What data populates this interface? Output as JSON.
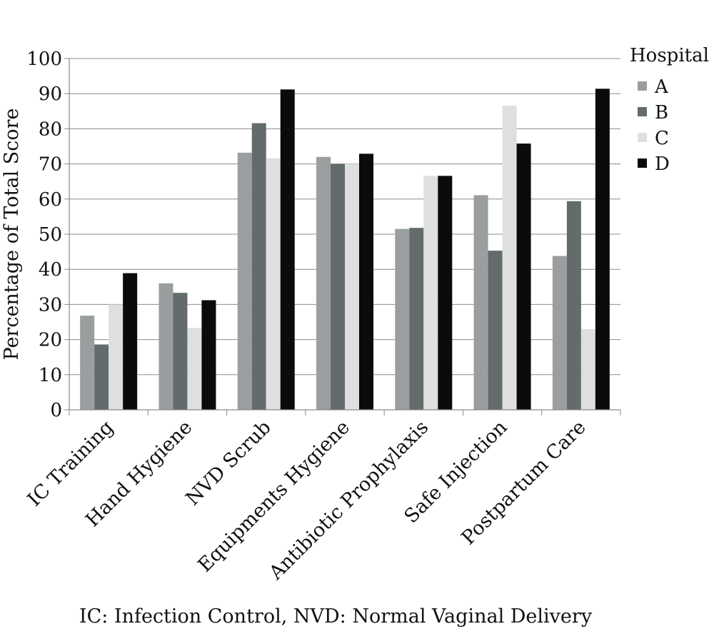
{
  "chart_data": {
    "type": "bar",
    "categories": [
      "IC Training",
      "Hand Hygiene",
      "NVD Scrub",
      "Equipments Hygiene",
      "Antibiotic Prophylaxis",
      "Safe Injection",
      "Postpartum Care"
    ],
    "series": [
      {
        "name": "A",
        "color": "#9a9e9e",
        "values": [
          26.8,
          36.0,
          73.2,
          72.0,
          51.5,
          61.1,
          43.8
        ]
      },
      {
        "name": "B",
        "color": "#646b6d",
        "values": [
          18.6,
          33.3,
          81.6,
          70.0,
          51.8,
          45.3,
          59.4
        ]
      },
      {
        "name": "C",
        "color": "#dde0df",
        "values": [
          30.0,
          23.3,
          71.6,
          70.0,
          66.6,
          86.6,
          23.0
        ]
      },
      {
        "name": "D",
        "color": "#0b0b0b",
        "values": [
          38.9,
          31.2,
          91.2,
          72.9,
          66.6,
          75.8,
          91.4
        ]
      }
    ],
    "ylabel": "Percentage of Total Score",
    "xlabel": "",
    "ylim": [
      0,
      100
    ],
    "yticks": [
      0,
      10,
      20,
      30,
      40,
      50,
      60,
      70,
      80,
      90,
      100
    ],
    "grid": true,
    "legend": {
      "title": "Hospital",
      "position": "right"
    }
  },
  "footnote": "IC:  Infection Control, NVD: Normal Vaginal Delivery"
}
